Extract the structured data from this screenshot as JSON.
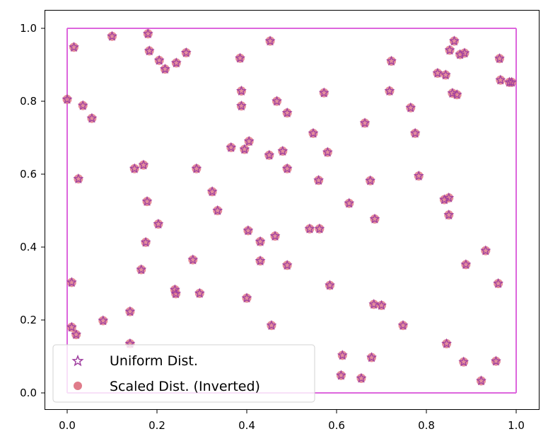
{
  "chart_data": {
    "type": "scatter",
    "title": "",
    "xlabel": "",
    "ylabel": "",
    "xlim": [
      -0.05,
      1.05
    ],
    "ylim": [
      -0.05,
      1.05
    ],
    "xticks": [
      "0.0",
      "0.2",
      "0.4",
      "0.6",
      "0.8",
      "1.0"
    ],
    "yticks": [
      "0.0",
      "0.2",
      "0.4",
      "0.6",
      "0.8",
      "1.0"
    ],
    "grid": false,
    "legend_position": "lower-left",
    "frame": {
      "color": "#dd66dd",
      "x": [
        0.0,
        1.0
      ],
      "y": [
        0.0,
        1.0
      ]
    },
    "series": [
      {
        "name": "Uniform Dist.",
        "marker": "star",
        "color": "#a040a0",
        "points": [
          [
            0.0,
            0.805
          ],
          [
            0.01,
            0.303
          ],
          [
            0.01,
            0.18
          ],
          [
            0.02,
            0.16
          ],
          [
            0.015,
            0.948
          ],
          [
            0.035,
            0.788
          ],
          [
            0.055,
            0.753
          ],
          [
            0.025,
            0.587
          ],
          [
            0.08,
            0.198
          ],
          [
            0.1,
            0.978
          ],
          [
            0.14,
            0.223
          ],
          [
            0.14,
            0.135
          ],
          [
            0.15,
            0.615
          ],
          [
            0.165,
            0.338
          ],
          [
            0.17,
            0.625
          ],
          [
            0.175,
            0.413
          ],
          [
            0.178,
            0.525
          ],
          [
            0.18,
            0.985
          ],
          [
            0.183,
            0.938
          ],
          [
            0.203,
            0.463
          ],
          [
            0.205,
            0.912
          ],
          [
            0.218,
            0.888
          ],
          [
            0.24,
            0.283
          ],
          [
            0.242,
            0.272
          ],
          [
            0.243,
            0.905
          ],
          [
            0.265,
            0.933
          ],
          [
            0.28,
            0.365
          ],
          [
            0.288,
            0.615
          ],
          [
            0.295,
            0.273
          ],
          [
            0.323,
            0.552
          ],
          [
            0.335,
            0.5
          ],
          [
            0.365,
            0.673
          ],
          [
            0.385,
            0.918
          ],
          [
            0.388,
            0.828
          ],
          [
            0.388,
            0.787
          ],
          [
            0.395,
            0.668
          ],
          [
            0.4,
            0.26
          ],
          [
            0.403,
            0.445
          ],
          [
            0.405,
            0.69
          ],
          [
            0.43,
            0.415
          ],
          [
            0.43,
            0.362
          ],
          [
            0.45,
            0.652
          ],
          [
            0.452,
            0.965
          ],
          [
            0.455,
            0.185
          ],
          [
            0.463,
            0.43
          ],
          [
            0.467,
            0.8
          ],
          [
            0.48,
            0.663
          ],
          [
            0.49,
            0.35
          ],
          [
            0.49,
            0.615
          ],
          [
            0.49,
            0.768
          ],
          [
            0.54,
            0.45
          ],
          [
            0.548,
            0.712
          ],
          [
            0.56,
            0.583
          ],
          [
            0.562,
            0.45
          ],
          [
            0.572,
            0.823
          ],
          [
            0.58,
            0.66
          ],
          [
            0.585,
            0.295
          ],
          [
            0.61,
            0.048
          ],
          [
            0.613,
            0.103
          ],
          [
            0.628,
            0.52
          ],
          [
            0.655,
            0.04
          ],
          [
            0.663,
            0.74
          ],
          [
            0.675,
            0.582
          ],
          [
            0.678,
            0.097
          ],
          [
            0.683,
            0.243
          ],
          [
            0.685,
            0.477
          ],
          [
            0.7,
            0.24
          ],
          [
            0.718,
            0.828
          ],
          [
            0.722,
            0.91
          ],
          [
            0.748,
            0.185
          ],
          [
            0.765,
            0.782
          ],
          [
            0.775,
            0.712
          ],
          [
            0.783,
            0.595
          ],
          [
            0.825,
            0.877
          ],
          [
            0.84,
            0.53
          ],
          [
            0.843,
            0.872
          ],
          [
            0.845,
            0.135
          ],
          [
            0.85,
            0.535
          ],
          [
            0.85,
            0.488
          ],
          [
            0.852,
            0.94
          ],
          [
            0.858,
            0.822
          ],
          [
            0.862,
            0.965
          ],
          [
            0.868,
            0.818
          ],
          [
            0.875,
            0.928
          ],
          [
            0.883,
            0.085
          ],
          [
            0.885,
            0.932
          ],
          [
            0.888,
            0.352
          ],
          [
            0.922,
            0.033
          ],
          [
            0.932,
            0.39
          ],
          [
            0.955,
            0.087
          ],
          [
            0.96,
            0.3
          ],
          [
            0.963,
            0.917
          ],
          [
            0.965,
            0.858
          ],
          [
            0.985,
            0.852
          ],
          [
            0.99,
            0.852
          ]
        ]
      },
      {
        "name": "Scaled Dist. (Inverted)",
        "marker": "circle",
        "color": "#e07b8a",
        "points": [
          [
            0.0,
            0.805
          ],
          [
            0.01,
            0.303
          ],
          [
            0.01,
            0.18
          ],
          [
            0.02,
            0.16
          ],
          [
            0.015,
            0.948
          ],
          [
            0.035,
            0.788
          ],
          [
            0.055,
            0.753
          ],
          [
            0.025,
            0.587
          ],
          [
            0.08,
            0.198
          ],
          [
            0.1,
            0.978
          ],
          [
            0.14,
            0.223
          ],
          [
            0.14,
            0.135
          ],
          [
            0.15,
            0.615
          ],
          [
            0.165,
            0.338
          ],
          [
            0.17,
            0.625
          ],
          [
            0.175,
            0.413
          ],
          [
            0.178,
            0.525
          ],
          [
            0.18,
            0.985
          ],
          [
            0.183,
            0.938
          ],
          [
            0.203,
            0.463
          ],
          [
            0.205,
            0.912
          ],
          [
            0.218,
            0.888
          ],
          [
            0.24,
            0.283
          ],
          [
            0.242,
            0.272
          ],
          [
            0.243,
            0.905
          ],
          [
            0.265,
            0.933
          ],
          [
            0.28,
            0.365
          ],
          [
            0.288,
            0.615
          ],
          [
            0.295,
            0.273
          ],
          [
            0.323,
            0.552
          ],
          [
            0.335,
            0.5
          ],
          [
            0.365,
            0.673
          ],
          [
            0.385,
            0.918
          ],
          [
            0.388,
            0.828
          ],
          [
            0.388,
            0.787
          ],
          [
            0.395,
            0.668
          ],
          [
            0.4,
            0.26
          ],
          [
            0.403,
            0.445
          ],
          [
            0.405,
            0.69
          ],
          [
            0.43,
            0.415
          ],
          [
            0.43,
            0.362
          ],
          [
            0.45,
            0.652
          ],
          [
            0.452,
            0.965
          ],
          [
            0.455,
            0.185
          ],
          [
            0.463,
            0.43
          ],
          [
            0.467,
            0.8
          ],
          [
            0.48,
            0.663
          ],
          [
            0.49,
            0.35
          ],
          [
            0.49,
            0.615
          ],
          [
            0.49,
            0.768
          ],
          [
            0.54,
            0.45
          ],
          [
            0.548,
            0.712
          ],
          [
            0.56,
            0.583
          ],
          [
            0.562,
            0.45
          ],
          [
            0.572,
            0.823
          ],
          [
            0.58,
            0.66
          ],
          [
            0.585,
            0.295
          ],
          [
            0.61,
            0.048
          ],
          [
            0.613,
            0.103
          ],
          [
            0.628,
            0.52
          ],
          [
            0.655,
            0.04
          ],
          [
            0.663,
            0.74
          ],
          [
            0.675,
            0.582
          ],
          [
            0.678,
            0.097
          ],
          [
            0.683,
            0.243
          ],
          [
            0.685,
            0.477
          ],
          [
            0.7,
            0.24
          ],
          [
            0.718,
            0.828
          ],
          [
            0.722,
            0.91
          ],
          [
            0.748,
            0.185
          ],
          [
            0.765,
            0.782
          ],
          [
            0.775,
            0.712
          ],
          [
            0.783,
            0.595
          ],
          [
            0.825,
            0.877
          ],
          [
            0.84,
            0.53
          ],
          [
            0.843,
            0.872
          ],
          [
            0.845,
            0.135
          ],
          [
            0.85,
            0.535
          ],
          [
            0.85,
            0.488
          ],
          [
            0.852,
            0.94
          ],
          [
            0.858,
            0.822
          ],
          [
            0.862,
            0.965
          ],
          [
            0.868,
            0.818
          ],
          [
            0.875,
            0.928
          ],
          [
            0.883,
            0.085
          ],
          [
            0.885,
            0.932
          ],
          [
            0.888,
            0.352
          ],
          [
            0.922,
            0.033
          ],
          [
            0.932,
            0.39
          ],
          [
            0.955,
            0.087
          ],
          [
            0.96,
            0.3
          ],
          [
            0.963,
            0.917
          ],
          [
            0.965,
            0.858
          ],
          [
            0.985,
            0.852
          ],
          [
            0.99,
            0.852
          ]
        ]
      }
    ]
  }
}
